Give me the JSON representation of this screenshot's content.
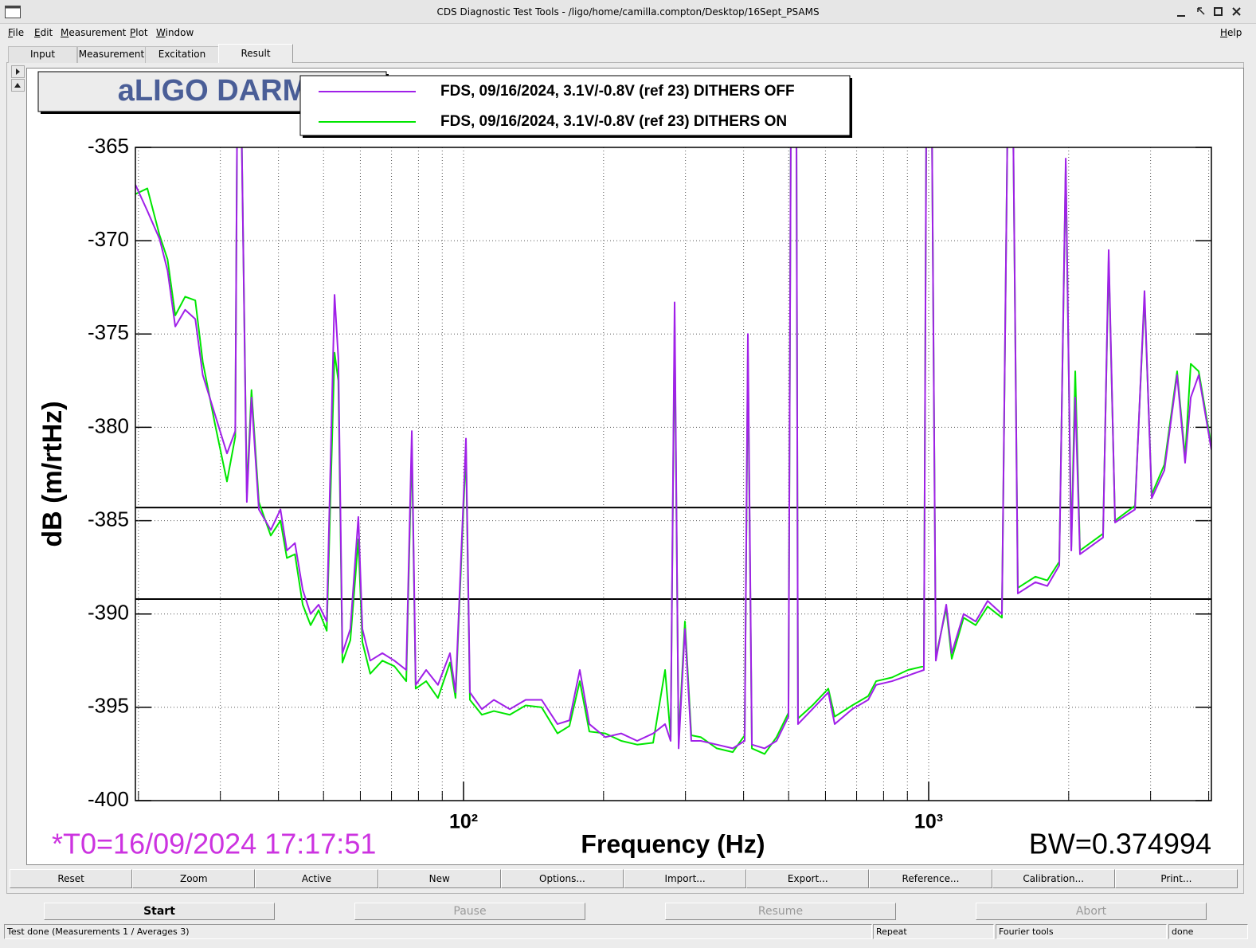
{
  "window": {
    "title": "CDS Diagnostic Test Tools - /ligo/home/camilla.compton/Desktop/16Sept_PSAMS"
  },
  "menu": [
    "File",
    "Edit",
    "Measurement",
    "Plot",
    "Window"
  ],
  "help_menu": "Help",
  "tabs": [
    "Input",
    "Measurement",
    "Excitation",
    "Result"
  ],
  "plot_buttons": [
    "Reset",
    "Zoom",
    "Active",
    "New",
    "Options...",
    "Import...",
    "Export...",
    "Reference...",
    "Calibration...",
    "Print..."
  ],
  "run_buttons": [
    "Start",
    "Pause",
    "Resume",
    "Abort"
  ],
  "status": [
    "Test done (Measurements 1 / Averages 3)",
    "Repeat",
    "Fourier tools",
    "done"
  ],
  "chart_data": {
    "type": "line",
    "title": "aLIGO DARM",
    "xlabel": "Frequency (Hz)",
    "ylabel": "dB (m/rtHz)",
    "xscale": "log",
    "xlim": [
      19.7,
      4054
    ],
    "ylim": [
      -400,
      -365
    ],
    "xticks": [
      {
        "value": 100,
        "label": "10²"
      },
      {
        "value": 1000,
        "label": "10³"
      }
    ],
    "xminorticks": [
      20,
      30,
      40,
      50,
      60,
      70,
      80,
      90,
      200,
      300,
      400,
      500,
      600,
      700,
      800,
      900,
      2000,
      3000,
      4000
    ],
    "yticks": [
      -365,
      -370,
      -375,
      -380,
      -385,
      -390,
      -395,
      -400
    ],
    "grid": true,
    "reference_lines": [
      -384.3,
      -389.2
    ],
    "annotations": [
      {
        "text": "*T0=16/09/2024 17:17:51",
        "color": "#cc33e0"
      },
      {
        "text": "BW=0.374994",
        "color": "#000000"
      }
    ],
    "x": [
      19.7,
      20.9,
      22.2,
      23.1,
      24.0,
      25.2,
      26.5,
      27.5,
      29.2,
      31.0,
      32.3,
      32.6,
      33.3,
      34.2,
      35.0,
      36.3,
      38.5,
      40.4,
      41.7,
      43.4,
      45.1,
      46.9,
      48.8,
      50.8,
      52.8,
      53.8,
      54.9,
      57.1,
      59.4,
      60.6,
      63.0,
      66.9,
      71.0,
      75.3,
      77.4,
      78.9,
      83.1,
      88.1,
      93.5,
      96.1,
      101.2,
      103.2,
      109.5,
      116.2,
      125.7,
      136.0,
      147.2,
      159.2,
      168.9,
      177.8,
      186.4,
      201.7,
      218.3,
      236.2,
      255.6,
      271.2,
      278.8,
      284.3,
      290.0,
      299.2,
      308.8,
      323.7,
      350.3,
      379.2,
      402.2,
      408.6,
      416.8,
      443.9,
      470.9,
      499.5,
      505.5,
      519.6,
      523.7,
      562.3,
      608.5,
      628.0,
      684.8,
      741.2,
      770.9,
      834.1,
      902.6,
      976.6,
      988.3,
      1016,
      1036,
      1091,
      1121,
      1189,
      1262,
      1339,
      1437,
      1478,
      1519,
      1555,
      1696,
      1799,
      1909,
      1971,
      2026,
      2066,
      2115,
      2371,
      2438,
      2516,
      2777,
      2911,
      3017,
      3212,
      3421,
      3559,
      3660,
      3807,
      4054
    ],
    "series": [
      {
        "name": "FDS, 09/16/2024, 3.1V/-0.8V (ref 23) DITHERS OFF",
        "color": "#a020e8",
        "values": [
          -367.0,
          -368.4,
          -369.9,
          -371.6,
          -374.6,
          -373.7,
          -374.2,
          -377.2,
          -379.3,
          -381.4,
          -380.2,
          -363.5,
          -363.5,
          -384.0,
          -378.4,
          -384.4,
          -385.5,
          -384.4,
          -386.6,
          -386.2,
          -388.7,
          -390.0,
          -389.5,
          -390.4,
          -372.9,
          -376.3,
          -392.1,
          -390.8,
          -384.8,
          -390.8,
          -392.5,
          -392.1,
          -392.5,
          -393.0,
          -380.2,
          -393.8,
          -393.0,
          -393.8,
          -392.1,
          -394.2,
          -380.6,
          -394.2,
          -395.1,
          -394.6,
          -395.1,
          -394.6,
          -394.6,
          -395.9,
          -395.7,
          -393.0,
          -395.9,
          -396.6,
          -396.4,
          -396.8,
          -396.4,
          -395.9,
          -396.8,
          -373.3,
          -397.2,
          -390.8,
          -396.8,
          -396.8,
          -397.0,
          -397.2,
          -396.8,
          -375.0,
          -397.0,
          -397.2,
          -396.8,
          -395.5,
          -363.5,
          -363.5,
          -395.9,
          -395.1,
          -394.2,
          -395.9,
          -395.1,
          -394.6,
          -393.8,
          -393.6,
          -393.3,
          -393.0,
          -363.5,
          -363.5,
          -392.5,
          -389.5,
          -392.1,
          -390.0,
          -390.4,
          -389.3,
          -390.0,
          -363.5,
          -363.5,
          -388.9,
          -388.3,
          -388.5,
          -387.4,
          -365.6,
          -386.6,
          -378.4,
          -386.8,
          -385.9,
          -370.5,
          -385.1,
          -384.4,
          -372.7,
          -383.8,
          -382.3,
          -377.2,
          -381.9,
          -378.4,
          -377.2,
          -381.2
        ]
      },
      {
        "name": "FDS, 09/16/2024, 3.1V/-0.8V (ref 23) DITHERS ON",
        "color": "#00e600",
        "values": [
          -367.5,
          -367.2,
          -369.7,
          -371.0,
          -374.0,
          -373.0,
          -373.2,
          -376.5,
          -379.8,
          -382.9,
          -380.5,
          -363.5,
          -363.5,
          -383.5,
          -378.0,
          -384.0,
          -385.8,
          -385.0,
          -387.0,
          -386.8,
          -389.5,
          -390.6,
          -389.8,
          -390.9,
          -376.0,
          -377.5,
          -392.6,
          -391.4,
          -386.0,
          -391.5,
          -393.2,
          -392.5,
          -392.8,
          -393.6,
          -381.0,
          -394.0,
          -393.6,
          -394.5,
          -392.6,
          -394.5,
          -381.2,
          -394.6,
          -395.4,
          -395.2,
          -395.4,
          -394.9,
          -395.0,
          -396.4,
          -396.0,
          -393.6,
          -396.3,
          -396.4,
          -396.8,
          -397.0,
          -396.9,
          -393.0,
          -396.6,
          -374.5,
          -396.8,
          -390.4,
          -396.5,
          -396.6,
          -397.2,
          -397.4,
          -396.5,
          -376.0,
          -397.2,
          -397.5,
          -396.6,
          -395.3,
          -363.5,
          -363.5,
          -395.6,
          -394.9,
          -394.0,
          -395.5,
          -394.9,
          -394.4,
          -393.6,
          -393.4,
          -393.0,
          -392.8,
          -363.5,
          -363.5,
          -392.3,
          -389.7,
          -392.4,
          -390.2,
          -390.6,
          -389.6,
          -390.2,
          -363.5,
          -363.5,
          -388.6,
          -388.0,
          -388.2,
          -387.2,
          -366.0,
          -386.4,
          -377.0,
          -386.6,
          -385.7,
          -371.0,
          -385.0,
          -384.2,
          -373.0,
          -383.6,
          -382.0,
          -377.0,
          -381.6,
          -376.6,
          -377.0,
          -381.0
        ]
      }
    ]
  }
}
